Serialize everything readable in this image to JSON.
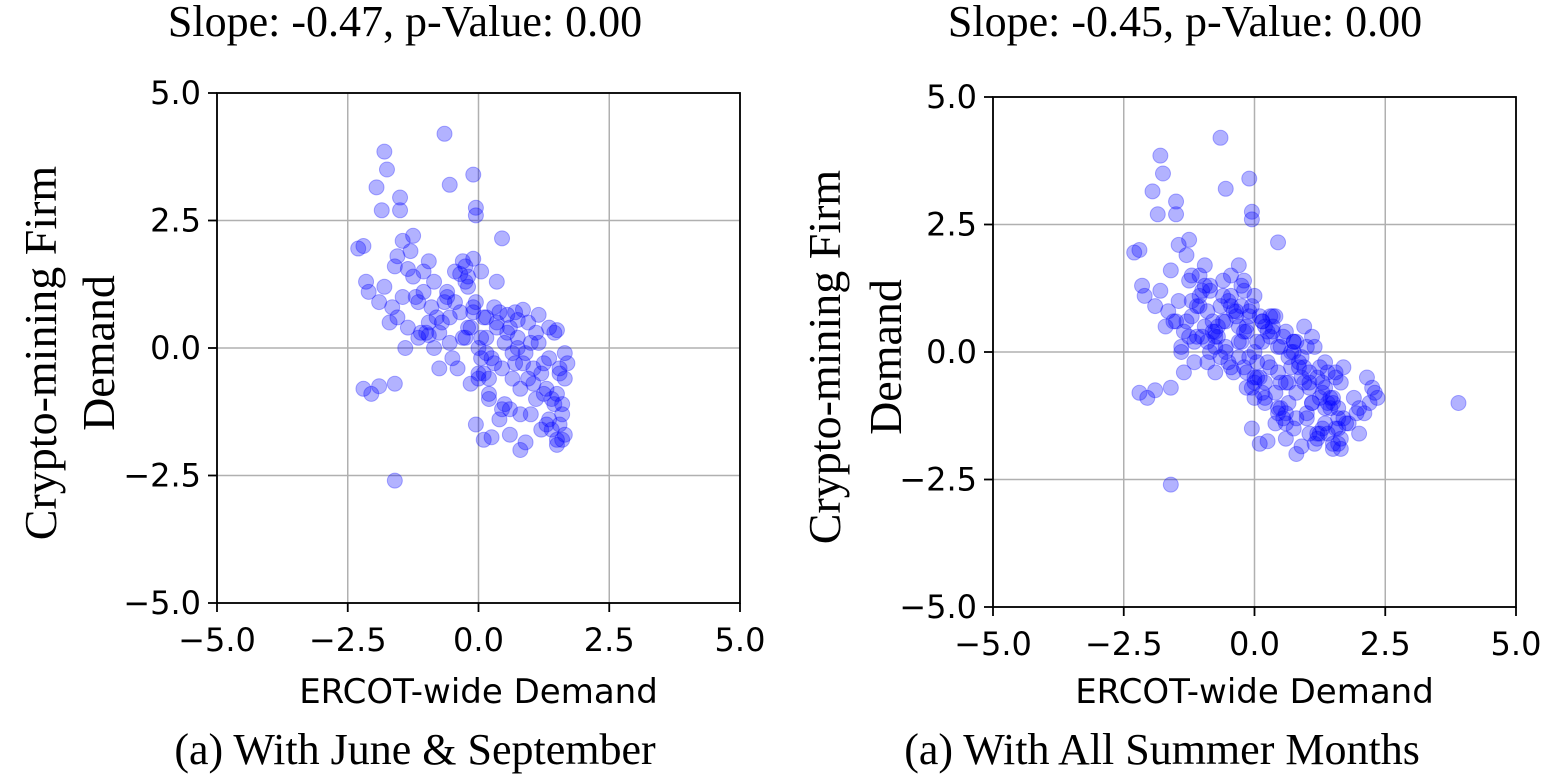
{
  "chart_data": [
    {
      "type": "scatter",
      "title": "Slope: -0.47, p-Value: 0.00",
      "caption": "(a) With June & September",
      "xlabel": "ERCOT-wide Demand",
      "ylabel": [
        "Crypto-mining Firm",
        "Demand"
      ],
      "xlim": [
        -5.0,
        5.0
      ],
      "ylim": [
        -5.0,
        5.0
      ],
      "xticks": [
        "−5.0",
        "−2.5",
        "0.0",
        "2.5",
        "5.0"
      ],
      "yticks": [
        "−5.0",
        "−2.5",
        "0.0",
        "2.5",
        "5.0"
      ],
      "grid": true,
      "point_color": "#0000ff",
      "series": [
        {
          "x": [
            -0.65,
            -1.8,
            -1.75,
            -0.55,
            -0.1,
            -1.95,
            -1.5,
            -1.5,
            -1.85,
            -0.05,
            -0.05,
            -1.25,
            0.45,
            -2.3,
            -2.2,
            -1.6,
            -1.45,
            -1.3,
            -0.95,
            -1.05,
            -2.15,
            -2.1,
            -1.9,
            -1.8,
            -1.65,
            -1.55,
            -1.45,
            -1.35,
            -1.25,
            -1.15,
            -1.05,
            -0.95,
            -0.85,
            -0.75,
            -0.65,
            -0.55,
            -0.45,
            -0.35,
            -0.25,
            -0.15,
            -0.05,
            0.05,
            0.15,
            0.25,
            0.35,
            0.45,
            0.55,
            0.65,
            0.75,
            0.85,
            0.95,
            1.05,
            1.15,
            1.25,
            1.35,
            1.45,
            1.55,
            1.65,
            -0.3,
            -0.2,
            -0.1,
            -1.7,
            -1.4,
            -1.1,
            -0.8,
            -0.5,
            -0.2,
            0.1,
            0.4,
            0.7,
            1.0,
            1.3,
            1.6,
            -1.2,
            -0.9,
            -0.6,
            -0.3,
            0.0,
            0.3,
            0.6,
            0.9,
            1.2,
            1.5,
            -1.0,
            -0.7,
            -0.4,
            -0.1,
            0.2,
            0.5,
            0.8,
            1.1,
            1.4,
            1.7,
            -0.85,
            -0.55,
            -0.25,
            0.05,
            0.35,
            0.65,
            0.95,
            1.25,
            1.55,
            -0.75,
            -0.45,
            -0.15,
            0.15,
            0.45,
            0.75,
            1.05,
            1.35,
            1.65,
            -2.2,
            -2.05,
            -1.9,
            -1.6,
            -0.2,
            0.0,
            0.2,
            0.5,
            0.8,
            1.1,
            1.4,
            1.6,
            -0.05,
            0.1,
            0.25,
            0.6,
            0.9,
            1.2,
            1.5,
            0.0,
            0.2,
            0.4,
            0.6,
            0.8,
            1.0,
            1.3,
            1.5,
            1.55,
            1.6,
            -1.6,
            0.1,
            0.3,
            0.15,
            0.7,
            0.85,
            1.45,
            1.5,
            1.65,
            -0.95,
            -1.15,
            -1.35,
            -1.55,
            -0.6,
            -0.35,
            -0.25,
            -0.1,
            0.05,
            0.35,
            0.55,
            0.75,
            1.15,
            1.35
          ],
          "y": [
            4.2,
            3.85,
            3.5,
            3.2,
            3.4,
            3.15,
            2.95,
            2.7,
            2.7,
            2.75,
            2.6,
            2.2,
            2.15,
            1.95,
            2.0,
            1.6,
            2.1,
            1.9,
            1.7,
            1.5,
            1.3,
            1.1,
            0.9,
            1.2,
            0.8,
            0.6,
            1.0,
            0.4,
            1.4,
            0.2,
            1.1,
            0.5,
            1.3,
            0.3,
            0.9,
            0.1,
            1.5,
            0.7,
            1.3,
            0.4,
            0.9,
            0.2,
            0.6,
            -0.2,
            0.5,
            -0.4,
            0.3,
            -0.6,
            0.2,
            -0.3,
            0.5,
            -0.7,
            0.1,
            -0.9,
            -0.2,
            -1.1,
            -0.4,
            -0.6,
            1.7,
            1.2,
            0.8,
            0.5,
            0.0,
            0.3,
            0.6,
            -0.2,
            0.4,
            -0.5,
            0.7,
            -0.3,
            0.1,
            -0.8,
            -1.3,
            1.0,
            0.8,
            1.1,
            0.2,
            0.0,
            -0.3,
            0.4,
            -0.1,
            -0.5,
            -0.9,
            0.3,
            0.5,
            -0.4,
            0.7,
            -0.6,
            0.1,
            -0.8,
            0.3,
            -1.0,
            -0.3,
            0.0,
            0.6,
            0.2,
            -0.2,
            0.4,
            -0.1,
            -0.6,
            -0.3,
            -1.5,
            -0.4,
            0.9,
            -0.7,
            0.2,
            -1.2,
            0.0,
            -0.4,
            -1.4,
            -1.7,
            -0.8,
            -0.9,
            -0.75,
            -0.7,
            1.4,
            -0.5,
            -0.9,
            -1.1,
            -1.3,
            -1.0,
            -1.6,
            -1.8,
            -1.5,
            -1.8,
            -1.75,
            -1.2,
            -1.85,
            -1.6,
            -1.9,
            -0.6,
            -1.0,
            -1.4,
            -1.7,
            -2.0,
            -1.3,
            -1.5,
            -1.8,
            -0.5,
            -1.1,
            -2.6,
            0.6,
            0.8,
            -0.1,
            0.7,
            0.75,
            0.3,
            0.35,
            -0.1,
            0.25,
            0.9,
            1.55,
            1.8,
            1.0,
            1.45,
            1.6,
            1.75,
            1.5,
            1.3,
            0.65,
            0.55,
            0.65,
            0.4
          ]
        }
      ]
    },
    {
      "type": "scatter",
      "title": "Slope: -0.45, p-Value: 0.00",
      "caption": "(a) With All Summer Months",
      "xlabel": "ERCOT-wide Demand",
      "ylabel": [
        "Crypto-mining Firm",
        "Demand"
      ],
      "xlim": [
        -5.0,
        5.0
      ],
      "ylim": [
        -5.0,
        5.0
      ],
      "xticks": [
        "−5.0",
        "−2.5",
        "0.0",
        "2.5",
        "5.0"
      ],
      "yticks": [
        "−5.0",
        "−2.5",
        "0.0",
        "2.5",
        "5.0"
      ],
      "grid": true,
      "point_color": "#0000ff",
      "series": [
        {
          "x": [
            -0.65,
            -1.8,
            -1.75,
            -0.55,
            -0.1,
            -1.95,
            -1.5,
            -1.5,
            -1.85,
            -0.05,
            -0.05,
            -1.25,
            0.45,
            -2.3,
            -2.2,
            -1.6,
            -1.45,
            -1.3,
            -0.95,
            -1.05,
            -2.15,
            -2.1,
            -1.9,
            -1.8,
            -1.65,
            -1.55,
            -1.45,
            -1.35,
            -1.25,
            -1.15,
            -1.05,
            -0.95,
            -0.85,
            -0.75,
            -0.65,
            -0.55,
            -0.45,
            -0.35,
            -0.25,
            -0.15,
            -0.05,
            0.05,
            0.15,
            0.25,
            0.35,
            0.45,
            0.55,
            0.65,
            0.75,
            0.85,
            0.95,
            1.05,
            1.15,
            1.25,
            1.35,
            1.45,
            1.55,
            1.65,
            -0.3,
            -0.2,
            -0.1,
            -1.7,
            -1.4,
            -1.1,
            -0.8,
            -0.5,
            -0.2,
            0.1,
            0.4,
            0.7,
            1.0,
            1.3,
            1.6,
            -1.2,
            -0.9,
            -0.6,
            -0.3,
            0.0,
            0.3,
            0.6,
            0.9,
            1.2,
            1.5,
            -1.0,
            -0.7,
            -0.4,
            -0.1,
            0.2,
            0.5,
            0.8,
            1.1,
            1.4,
            1.7,
            -0.85,
            -0.55,
            -0.25,
            0.05,
            0.35,
            0.65,
            0.95,
            1.25,
            1.55,
            -0.75,
            -0.45,
            -0.15,
            0.15,
            0.45,
            0.75,
            1.05,
            1.35,
            1.65,
            -2.2,
            -2.05,
            -1.9,
            -1.6,
            -0.2,
            0.0,
            0.2,
            0.5,
            0.8,
            1.1,
            1.4,
            1.6,
            -0.05,
            0.1,
            0.25,
            0.6,
            0.9,
            1.2,
            1.5,
            0.0,
            0.2,
            0.4,
            0.6,
            0.8,
            1.0,
            1.3,
            1.5,
            1.55,
            1.6,
            -1.6,
            -1.3,
            -1.0,
            -0.7,
            -0.4,
            -0.1,
            0.2,
            0.5,
            0.8,
            1.1,
            1.4,
            1.7,
            2.0,
            2.2,
            2.3,
            -1.4,
            -1.1,
            -0.8,
            -0.5,
            -0.2,
            0.1,
            0.4,
            0.7,
            1.0,
            1.3,
            1.6,
            1.9,
            2.1,
            2.25,
            -1.2,
            -0.9,
            -0.6,
            -0.3,
            0.0,
            0.3,
            0.6,
            0.9,
            1.2,
            1.5,
            1.8,
            2.0,
            -1.35,
            -1.05,
            -0.75,
            -0.45,
            -0.15,
            0.15,
            0.45,
            0.75,
            1.05,
            1.35,
            1.65,
            1.95,
            -0.95,
            -0.65,
            -0.35,
            -0.05,
            0.25,
            0.55,
            0.85,
            1.15,
            1.45,
            1.75,
            -1.25,
            -0.85,
            -0.55,
            -0.25,
            0.05,
            0.35,
            0.65,
            0.95,
            1.25,
            -1.15,
            -0.75,
            -0.45,
            -0.15,
            0.15,
            0.45,
            0.75,
            1.05,
            1.35,
            2.15,
            2.35,
            3.9,
            -1.5,
            -1.2,
            -0.9,
            -0.6,
            -0.3,
            0.0,
            0.3,
            0.6
          ],
          "y": [
            4.2,
            3.85,
            3.5,
            3.2,
            3.4,
            3.15,
            2.95,
            2.7,
            2.7,
            2.75,
            2.6,
            2.2,
            2.15,
            1.95,
            2.0,
            1.6,
            2.1,
            1.9,
            1.7,
            1.5,
            1.3,
            1.1,
            0.9,
            1.2,
            0.8,
            0.6,
            1.0,
            0.4,
            1.4,
            0.2,
            1.1,
            0.5,
            1.3,
            0.3,
            0.9,
            0.1,
            1.5,
            0.7,
            1.3,
            0.4,
            0.9,
            0.2,
            0.6,
            -0.2,
            0.5,
            -0.4,
            0.3,
            -0.6,
            0.2,
            -0.3,
            0.5,
            -0.7,
            0.1,
            -0.9,
            -0.2,
            -1.1,
            -0.4,
            -0.6,
            1.7,
            1.2,
            0.8,
            0.5,
            0.0,
            0.3,
            0.6,
            -0.2,
            0.4,
            -0.5,
            0.7,
            -0.3,
            0.1,
            -0.8,
            -1.3,
            1.0,
            0.8,
            1.1,
            0.2,
            0.0,
            -0.3,
            0.4,
            -0.1,
            -0.5,
            -0.9,
            0.3,
            0.5,
            -0.4,
            0.7,
            -0.6,
            0.1,
            -0.8,
            0.3,
            -1.0,
            -0.3,
            0.0,
            0.6,
            0.2,
            -0.2,
            0.4,
            -0.1,
            -0.6,
            -0.3,
            -1.5,
            -0.4,
            0.9,
            -0.7,
            0.2,
            -1.2,
            0.0,
            -0.4,
            -1.4,
            -1.7,
            -0.8,
            -0.9,
            -0.75,
            -0.7,
            1.4,
            -0.5,
            -0.9,
            -1.1,
            -1.3,
            -1.0,
            -1.6,
            -1.8,
            -1.5,
            -1.8,
            -1.75,
            -1.2,
            -1.85,
            -1.6,
            -1.9,
            -0.6,
            -1.0,
            -1.4,
            -1.7,
            -2.0,
            -1.3,
            -1.5,
            -1.8,
            -0.5,
            -1.1,
            -2.6,
            0.6,
            1.2,
            0.3,
            0.8,
            -0.1,
            0.5,
            -0.6,
            0.2,
            -1.0,
            -0.4,
            -1.3,
            -1.1,
            -1.0,
            -0.8,
            0.1,
            0.9,
            0.4,
            1.0,
            -0.3,
            0.7,
            -0.8,
            0.0,
            -1.2,
            -0.6,
            -1.5,
            -0.9,
            -1.2,
            -0.7,
            0.7,
            -0.2,
            0.6,
            0.5,
            -0.9,
            0.3,
            -1.4,
            -0.5,
            -1.7,
            -1.0,
            -1.4,
            -1.6,
            -0.4,
            0.9,
            0.1,
            1.1,
            -0.4,
            0.6,
            -1.1,
            0.2,
            -1.6,
            -0.7,
            -1.9,
            -1.2,
            1.3,
            -0.1,
            0.8,
            -0.7,
            0.4,
            -1.3,
            -0.2,
            -1.8,
            -0.9,
            -1.4,
            0.3,
            1.2,
            0.0,
            0.9,
            -0.5,
            0.7,
            -1.0,
            -0.3,
            -1.6,
            -0.2,
            0.4,
            -0.3,
            0.5,
            -0.8,
            0.1,
            -1.5,
            -0.6,
            -1.1,
            -0.5,
            -0.9,
            -1.0,
            0.6,
            1.5,
            0.2,
            1.4,
            -0.1,
            1.1,
            0.7,
            -0.6
          ]
        }
      ]
    }
  ]
}
